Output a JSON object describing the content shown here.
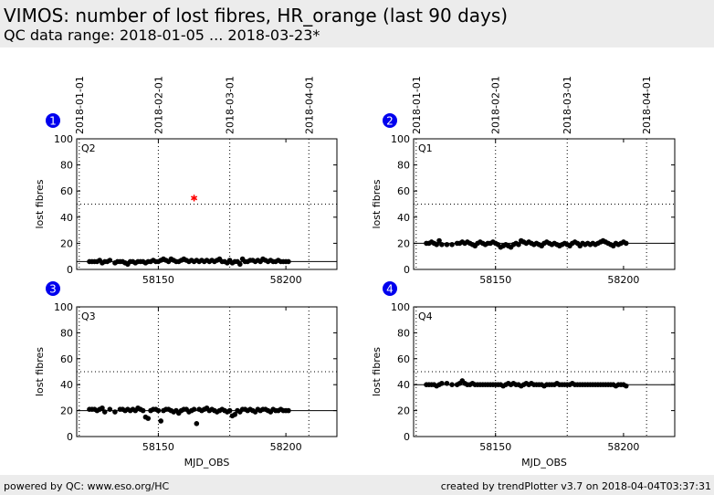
{
  "header": {
    "title": "VIMOS: number of lost fibres, HR_orange (last 90 days)",
    "subtitle": "QC data range: 2018-01-05 ... 2018-03-23*"
  },
  "footer": {
    "left": "powered by QC: www.eso.org/HC",
    "right": "created by trendPlotter v3.7 on 2018-04-04T03:37:31"
  },
  "colors": {
    "marker": "#000000",
    "outlier": "#ff0000",
    "badge": "#0000ee",
    "header_bg": "#ececec"
  },
  "chart_data": [
    {
      "type": "scatter",
      "panel_number": "1",
      "quadrant_label": "Q2",
      "ylabel": "lost fibres",
      "xlabel": "",
      "xlim": [
        58118,
        58220
      ],
      "ylim": [
        0,
        100
      ],
      "xticks": [
        58150,
        58200
      ],
      "xtick_labels": [
        "58150",
        "58200"
      ],
      "yticks": [
        0,
        20,
        40,
        60,
        80,
        100
      ],
      "ytick_labels": [
        "0",
        "20",
        "40",
        "60",
        "80",
        "100"
      ],
      "date_ticks": [
        {
          "x": 58119,
          "label": "2018-01-01"
        },
        {
          "x": 58150,
          "label": "2018-02-01"
        },
        {
          "x": 58178,
          "label": "2018-03-01"
        },
        {
          "x": 58209,
          "label": "2018-04-01"
        }
      ],
      "reference_line": 50,
      "median": 6,
      "series": [
        {
          "x": [
            58123,
            58124,
            58125,
            58126,
            58127,
            58128,
            58129,
            58130,
            58131,
            58133,
            58134,
            58135,
            58136,
            58137,
            58138,
            58139,
            58140,
            58141,
            58142,
            58143,
            58144,
            58145,
            58146,
            58147,
            58148,
            58149,
            58150,
            58151,
            58152,
            58153,
            58154,
            58155,
            58156,
            58157,
            58158,
            58159,
            58160,
            58161,
            58162,
            58163,
            58164,
            58165,
            58166,
            58167,
            58168,
            58169,
            58170,
            58171,
            58172,
            58173,
            58174,
            58175,
            58176,
            58177,
            58178,
            58179,
            58180,
            58181,
            58182,
            58183,
            58184,
            58185,
            58186,
            58187,
            58188,
            58189,
            58190,
            58191,
            58192,
            58193,
            58194,
            58195,
            58196,
            58197,
            58198,
            58199,
            58200,
            58201
          ],
          "y": [
            6,
            6,
            6,
            6,
            7,
            5,
            6,
            6,
            7,
            5,
            6,
            6,
            6,
            5,
            4,
            6,
            6,
            5,
            6,
            6,
            6,
            5,
            6,
            6,
            7,
            6,
            6,
            7,
            8,
            7,
            6,
            8,
            7,
            6,
            6,
            7,
            8,
            7,
            6,
            7,
            6,
            7,
            6,
            7,
            6,
            7,
            6,
            7,
            6,
            7,
            8,
            6,
            6,
            5,
            7,
            5,
            6,
            6,
            4,
            8,
            6,
            6,
            7,
            7,
            6,
            7,
            6,
            8,
            7,
            6,
            7,
            6,
            6,
            7,
            6,
            6,
            6,
            6
          ]
        },
        {
          "name": "outlier",
          "x": [
            58164
          ],
          "y": [
            55
          ]
        }
      ]
    },
    {
      "type": "scatter",
      "panel_number": "2",
      "quadrant_label": "Q1",
      "ylabel": "lost fibres",
      "xlabel": "",
      "xlim": [
        58118,
        58220
      ],
      "ylim": [
        0,
        100
      ],
      "xticks": [
        58150,
        58200
      ],
      "xtick_labels": [
        "58150",
        "58200"
      ],
      "yticks": [
        0,
        20,
        40,
        60,
        80,
        100
      ],
      "ytick_labels": [
        "0",
        "20",
        "40",
        "60",
        "80",
        "100"
      ],
      "date_ticks": [
        {
          "x": 58119,
          "label": "2018-01-01"
        },
        {
          "x": 58150,
          "label": "2018-02-01"
        },
        {
          "x": 58178,
          "label": "2018-03-01"
        },
        {
          "x": 58209,
          "label": "2018-04-01"
        }
      ],
      "reference_line": 50,
      "median": 20,
      "series": [
        {
          "x": [
            58123,
            58124,
            58125,
            58126,
            58127,
            58128,
            58129,
            58131,
            58133,
            58135,
            58136,
            58137,
            58138,
            58139,
            58140,
            58141,
            58142,
            58143,
            58144,
            58145,
            58146,
            58147,
            58148,
            58149,
            58150,
            58151,
            58152,
            58153,
            58154,
            58155,
            58156,
            58157,
            58158,
            58159,
            58160,
            58161,
            58162,
            58163,
            58164,
            58165,
            58166,
            58167,
            58168,
            58169,
            58170,
            58171,
            58172,
            58173,
            58174,
            58175,
            58176,
            58177,
            58178,
            58179,
            58180,
            58181,
            58182,
            58183,
            58184,
            58185,
            58186,
            58187,
            58188,
            58189,
            58190,
            58191,
            58192,
            58193,
            58194,
            58195,
            58196,
            58197,
            58198,
            58199,
            58200,
            58201
          ],
          "y": [
            20,
            20,
            21,
            20,
            19,
            22,
            19,
            19,
            19,
            20,
            20,
            21,
            20,
            21,
            20,
            19,
            18,
            20,
            21,
            20,
            19,
            20,
            20,
            21,
            20,
            19,
            17,
            18,
            19,
            18,
            17,
            19,
            20,
            19,
            22,
            21,
            20,
            21,
            20,
            19,
            20,
            19,
            18,
            20,
            21,
            20,
            19,
            20,
            19,
            18,
            19,
            20,
            19,
            18,
            20,
            21,
            20,
            18,
            20,
            19,
            20,
            19,
            20,
            19,
            20,
            21,
            22,
            21,
            20,
            19,
            18,
            20,
            19,
            20,
            21,
            20
          ]
        }
      ]
    },
    {
      "type": "scatter",
      "panel_number": "3",
      "quadrant_label": "Q3",
      "ylabel": "lost fibres",
      "xlabel": "MJD_OBS",
      "xlim": [
        58118,
        58220
      ],
      "ylim": [
        0,
        100
      ],
      "xticks": [
        58150,
        58200
      ],
      "xtick_labels": [
        "58150",
        "58200"
      ],
      "yticks": [
        0,
        20,
        40,
        60,
        80,
        100
      ],
      "ytick_labels": [
        "0",
        "20",
        "40",
        "60",
        "80",
        "100"
      ],
      "date_ticks": [
        {
          "x": 58119,
          "label": "2018-01-01"
        },
        {
          "x": 58150,
          "label": "2018-02-01"
        },
        {
          "x": 58178,
          "label": "2018-03-01"
        },
        {
          "x": 58209,
          "label": "2018-04-01"
        }
      ],
      "reference_line": 50,
      "median": 20,
      "series": [
        {
          "x": [
            58123,
            58124,
            58125,
            58126,
            58127,
            58128,
            58129,
            58131,
            58133,
            58135,
            58136,
            58137,
            58138,
            58139,
            58140,
            58141,
            58142,
            58143,
            58144,
            58145,
            58146,
            58147,
            58148,
            58149,
            58150,
            58151,
            58152,
            58153,
            58154,
            58155,
            58156,
            58157,
            58158,
            58159,
            58160,
            58161,
            58162,
            58163,
            58164,
            58165,
            58166,
            58167,
            58168,
            58169,
            58170,
            58171,
            58172,
            58173,
            58174,
            58175,
            58176,
            58177,
            58178,
            58179,
            58180,
            58181,
            58182,
            58183,
            58184,
            58185,
            58186,
            58187,
            58188,
            58189,
            58190,
            58191,
            58192,
            58193,
            58194,
            58195,
            58196,
            58197,
            58198,
            58199,
            58200,
            58201
          ],
          "y": [
            21,
            21,
            21,
            20,
            21,
            22,
            19,
            21,
            19,
            21,
            21,
            20,
            21,
            20,
            21,
            20,
            22,
            21,
            20,
            15,
            14,
            20,
            21,
            21,
            20,
            12,
            20,
            21,
            21,
            20,
            19,
            20,
            18,
            20,
            21,
            21,
            19,
            20,
            21,
            10,
            21,
            20,
            21,
            22,
            20,
            21,
            20,
            19,
            20,
            21,
            20,
            19,
            20,
            16,
            17,
            20,
            19,
            21,
            21,
            20,
            21,
            20,
            19,
            21,
            20,
            21,
            21,
            20,
            19,
            21,
            20,
            20,
            21,
            20,
            20,
            20
          ]
        }
      ]
    },
    {
      "type": "scatter",
      "panel_number": "4",
      "quadrant_label": "Q4",
      "ylabel": "lost fibres",
      "xlabel": "MJD_OBS",
      "xlim": [
        58118,
        58220
      ],
      "ylim": [
        0,
        100
      ],
      "xticks": [
        58150,
        58200
      ],
      "xtick_labels": [
        "58150",
        "58200"
      ],
      "yticks": [
        0,
        20,
        40,
        60,
        80,
        100
      ],
      "ytick_labels": [
        "0",
        "20",
        "40",
        "60",
        "80",
        "100"
      ],
      "date_ticks": [
        {
          "x": 58119,
          "label": "2018-01-01"
        },
        {
          "x": 58150,
          "label": "2018-02-01"
        },
        {
          "x": 58178,
          "label": "2018-03-01"
        },
        {
          "x": 58209,
          "label": "2018-04-01"
        }
      ],
      "reference_line": 50,
      "median": 40,
      "series": [
        {
          "x": [
            58123,
            58124,
            58125,
            58126,
            58127,
            58128,
            58129,
            58131,
            58133,
            58135,
            58136,
            58137,
            58138,
            58139,
            58140,
            58141,
            58142,
            58143,
            58144,
            58145,
            58146,
            58147,
            58148,
            58149,
            58150,
            58151,
            58152,
            58153,
            58154,
            58155,
            58156,
            58157,
            58158,
            58159,
            58160,
            58161,
            58162,
            58163,
            58164,
            58165,
            58166,
            58167,
            58168,
            58169,
            58170,
            58171,
            58172,
            58173,
            58174,
            58175,
            58176,
            58177,
            58178,
            58179,
            58180,
            58181,
            58182,
            58183,
            58184,
            58185,
            58186,
            58187,
            58188,
            58189,
            58190,
            58191,
            58192,
            58193,
            58194,
            58195,
            58196,
            58197,
            58198,
            58199,
            58200,
            58201
          ],
          "y": [
            40,
            40,
            40,
            40,
            39,
            40,
            41,
            41,
            40,
            40,
            41,
            43,
            41,
            40,
            40,
            41,
            40,
            40,
            40,
            40,
            40,
            40,
            40,
            40,
            40,
            40,
            40,
            39,
            40,
            41,
            40,
            41,
            40,
            40,
            39,
            40,
            41,
            40,
            41,
            40,
            40,
            40,
            40,
            39,
            40,
            40,
            40,
            40,
            41,
            40,
            40,
            40,
            40,
            40,
            41,
            40,
            40,
            40,
            40,
            40,
            40,
            40,
            40,
            40,
            40,
            40,
            40,
            40,
            40,
            40,
            40,
            39,
            40,
            40,
            40,
            39
          ]
        }
      ]
    }
  ]
}
